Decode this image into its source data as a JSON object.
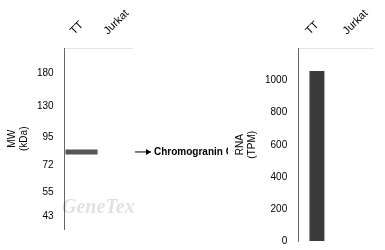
{
  "chart_data": [
    {
      "type": "scatter",
      "categories": [
        "TT",
        "Jurkat"
      ],
      "values": [
        82,
        null
      ],
      "marker": "line",
      "color": "#555555",
      "log": "y",
      "ylim": [
        38.02,
        230.14
      ],
      "yticks": [
        180,
        130,
        95,
        72,
        55,
        43
      ],
      "ylabel": [
        "MW",
        "(kDa)"
      ],
      "annotations": [
        {
          "text": "Chromogranin C",
          "category": "TT",
          "value": 82
        }
      ],
      "watermark": "GeneTex",
      "grid": false
    },
    {
      "type": "bar",
      "categories": [
        "TT",
        "Jurkat"
      ],
      "values": [
        1060,
        0
      ],
      "color": "#3a3a3a",
      "ylim": [
        0,
        1200
      ],
      "yticks": [
        0,
        200,
        400,
        600,
        800,
        1000
      ],
      "ylabel": [
        "RNA",
        "(TPM)"
      ],
      "grid": false
    }
  ]
}
